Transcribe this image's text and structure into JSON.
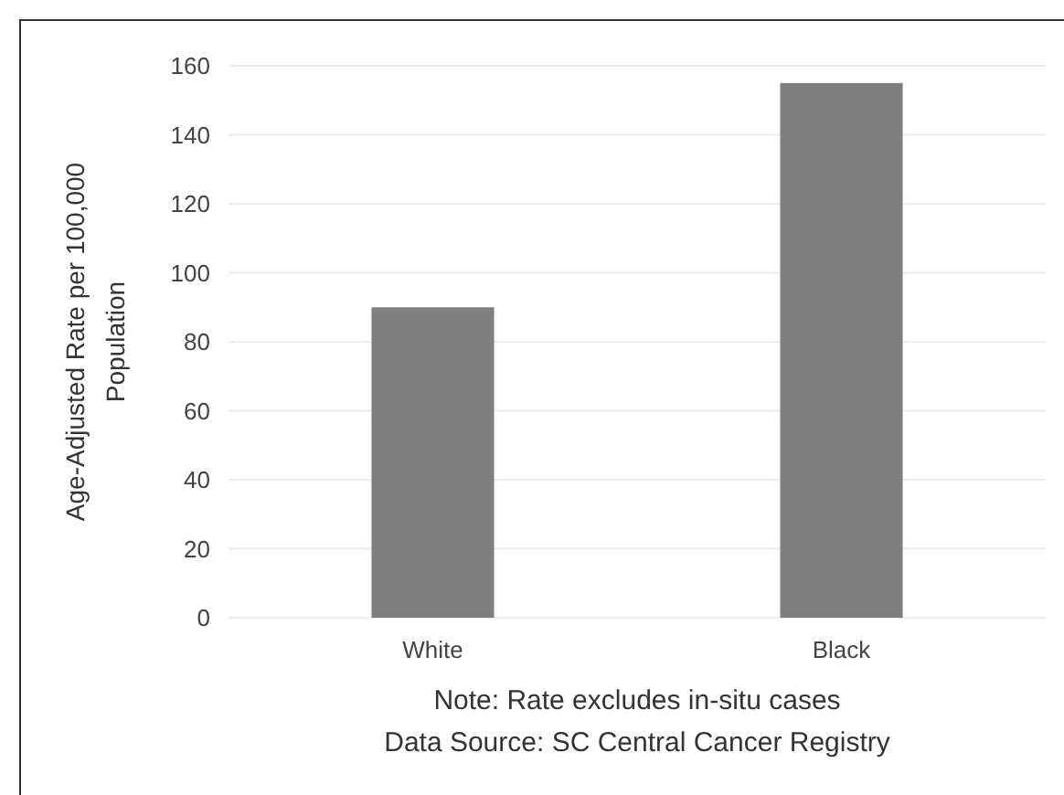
{
  "chart_data": {
    "type": "bar",
    "ylabel": "Age-Adjusted Rate per 100,000 Population",
    "categories": [
      "White",
      "Black"
    ],
    "values": [
      90,
      155
    ],
    "color": "#7f7f7f",
    "ylim": [
      0,
      160
    ],
    "yticks": [
      0,
      20,
      40,
      60,
      80,
      100,
      120,
      140,
      160
    ],
    "grid": "y",
    "annotations": [
      "Note: Rate excludes in-situ cases",
      "Data Source: SC Central Cancer Registry"
    ]
  }
}
